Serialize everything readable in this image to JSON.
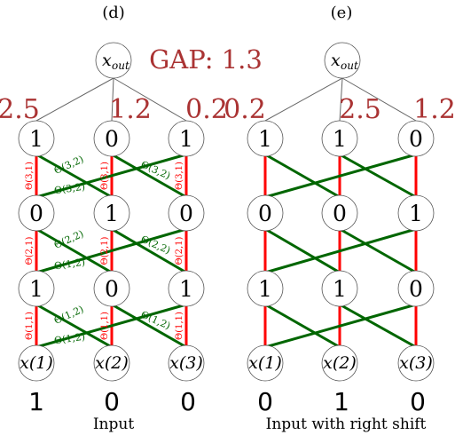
{
  "gap_label": "GAP: 1.3",
  "panels": [
    {
      "label": "(d)",
      "caption": "Input",
      "output_label": "x",
      "output_sub": "out",
      "weights": [
        "2.5",
        "1.2",
        "0.2"
      ],
      "layers": [
        [
          "1",
          "0",
          "1"
        ],
        [
          "0",
          "1",
          "0"
        ],
        [
          "1",
          "0",
          "1"
        ]
      ],
      "input_labels": [
        "x(1)",
        "x(2)",
        "x(3)"
      ],
      "input_values": [
        "1",
        "0",
        "0"
      ],
      "red_labels": [
        [
          "Θ(3,1)",
          "Θ(3,1)",
          "Θ(3,1)"
        ],
        [
          "Θ(2,1)",
          "Θ(2,1)",
          "Θ(2,1)"
        ],
        [
          "Θ(1,1)",
          "Θ(1,1)",
          "Θ(1,1)"
        ]
      ],
      "green_labels": [
        [
          "Θ(3,2)",
          "Θ(3,2)",
          "Θ(3,2)"
        ],
        [
          "Θ(2,2)",
          "Θ(2,2)",
          "Θ(1,2)"
        ],
        [
          "Θ(1,2)",
          "Θ(1,2)",
          "Θ(1,2)"
        ]
      ]
    },
    {
      "label": "(e)",
      "caption": "Input with right shift",
      "output_label": "x",
      "output_sub": "out",
      "weights": [
        "0.2",
        "2.5",
        "1.2"
      ],
      "layers": [
        [
          "1",
          "1",
          "0"
        ],
        [
          "0",
          "0",
          "1"
        ],
        [
          "1",
          "1",
          "0"
        ]
      ],
      "input_labels": [
        "x(1)",
        "x(2)",
        "x(3)"
      ],
      "input_values": [
        "0",
        "1",
        "0"
      ]
    }
  ]
}
